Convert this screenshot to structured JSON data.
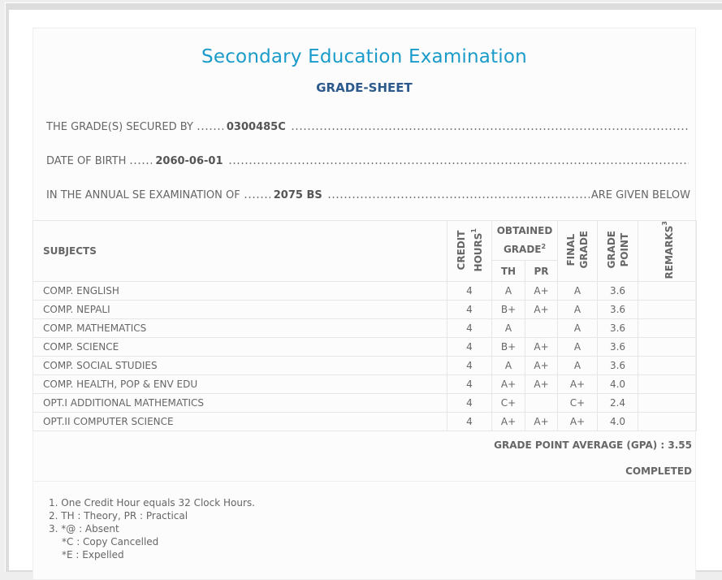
{
  "header": {
    "title": "Secondary Education Examination",
    "subtitle": "GRADE-SHEET"
  },
  "info": {
    "secured_by_label": "THE GRADE(S) SECURED BY",
    "secured_by_value": "0300485C",
    "dob_label": "DATE OF BIRTH",
    "dob_value": "2060-06-01",
    "exam_label": "IN THE ANNUAL SE EXAMINATION OF",
    "exam_value": "2075 BS",
    "exam_suffix": "ARE GIVEN BELOW"
  },
  "table": {
    "headers": {
      "subjects": "SUBJECTS",
      "credit": "CREDIT",
      "hours": "HOURS",
      "hours_sup": "1",
      "obtained": "OBTAINED",
      "grade": "GRADE",
      "grade_sup": "2",
      "th": "TH",
      "pr": "PR",
      "final1": "FINAL",
      "final2": "GRADE",
      "point1": "GRADE",
      "point2": "POINT",
      "remarks": "REMARKS",
      "remarks_sup": "3"
    },
    "rows": [
      {
        "subject": "COMP. ENGLISH",
        "credit": "4",
        "th": "A",
        "pr": "A+",
        "final": "A",
        "point": "3.6",
        "remarks": ""
      },
      {
        "subject": "COMP. NEPALI",
        "credit": "4",
        "th": "B+",
        "pr": "A+",
        "final": "A",
        "point": "3.6",
        "remarks": ""
      },
      {
        "subject": "COMP. MATHEMATICS",
        "credit": "4",
        "th": "A",
        "pr": "",
        "final": "A",
        "point": "3.6",
        "remarks": ""
      },
      {
        "subject": "COMP. SCIENCE",
        "credit": "4",
        "th": "B+",
        "pr": "A+",
        "final": "A",
        "point": "3.6",
        "remarks": ""
      },
      {
        "subject": "COMP. SOCIAL STUDIES",
        "credit": "4",
        "th": "A",
        "pr": "A+",
        "final": "A",
        "point": "3.6",
        "remarks": ""
      },
      {
        "subject": "COMP. HEALTH, POP & ENV EDU",
        "credit": "4",
        "th": "A+",
        "pr": "A+",
        "final": "A+",
        "point": "4.0",
        "remarks": ""
      },
      {
        "subject": "OPT.I ADDITIONAL MATHEMATICS",
        "credit": "4",
        "th": "C+",
        "pr": "",
        "final": "C+",
        "point": "2.4",
        "remarks": ""
      },
      {
        "subject": "OPT.II COMPUTER SCIENCE",
        "credit": "4",
        "th": "A+",
        "pr": "A+",
        "final": "A+",
        "point": "4.0",
        "remarks": ""
      }
    ]
  },
  "summary": {
    "gpa": "GRADE POINT AVERAGE (GPA) : 3.55",
    "status": "COMPLETED"
  },
  "notes": [
    "1. One Credit Hour equals 32 Clock Hours.",
    "2. TH : Theory, PR : Practical",
    "3. *@ : Absent",
    "*C : Copy Cancelled",
    "*E : Expelled"
  ],
  "colors": {
    "title": "#1a9bc9",
    "subtitle": "#2c5a8c",
    "text": "#666666"
  }
}
